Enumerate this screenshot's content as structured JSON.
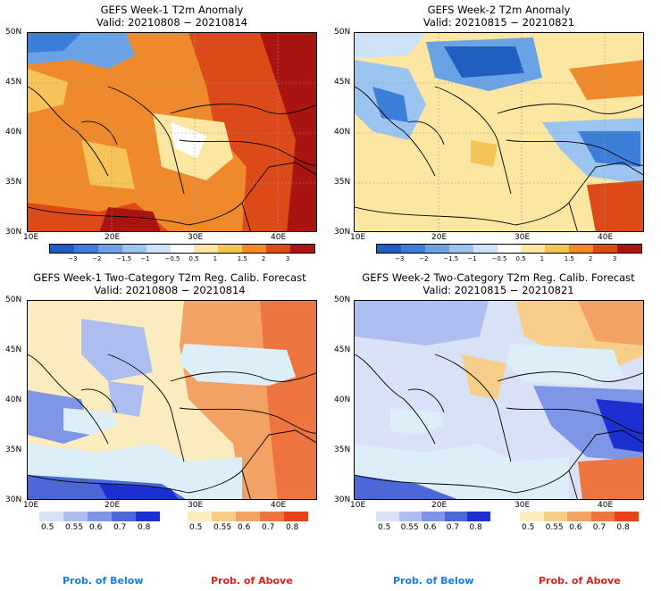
{
  "panels": [
    {
      "title": "GEFS Week-1 T2m Anomaly",
      "valid": "Valid: 20210808 − 20210814"
    },
    {
      "title": "GEFS Week-2 T2m Anomaly",
      "valid": "Valid: 20210815 − 20210821"
    },
    {
      "title": "GEFS Week-1 Two-Category T2m Reg. Calib. Forecast",
      "valid": "Valid: 20210808 − 20210814"
    },
    {
      "title": "GEFS Week-2 Two-Category T2m Reg. Calib. Forecast",
      "valid": "Valid: 20210815 − 20210821"
    }
  ],
  "lat_labels": [
    "50N",
    "45N",
    "40N",
    "35N",
    "30N"
  ],
  "lon_labels": [
    "10E",
    "20E",
    "30E",
    "40E"
  ],
  "anomaly_colorbar": {
    "ticks": [
      "−3",
      "−2",
      "−1.5",
      "−1",
      "−0.5",
      "0.5",
      "1",
      "1.5",
      "2",
      "3"
    ],
    "colors": [
      "#1f5fbf",
      "#3d7fd8",
      "#6aa2e6",
      "#9cc4f0",
      "#cfe3f8",
      "#ffffff",
      "#fbe6a2",
      "#f6c25a",
      "#ee8a2c",
      "#dc4a1a",
      "#a8140f"
    ]
  },
  "prob_colorbar": {
    "below_ticks": [
      "0.5",
      "0.55",
      "0.6",
      "0.7",
      "0.8"
    ],
    "above_ticks": [
      "0.5",
      "0.55",
      "0.6",
      "0.7",
      "0.8"
    ],
    "below_colors": [
      "#d9e1f7",
      "#aebdf0",
      "#7f96e6",
      "#4c68d8",
      "#1c2fd0"
    ],
    "above_colors": [
      "#fbecc0",
      "#f7cd8a",
      "#f3a266",
      "#ef7540",
      "#e8431a"
    ],
    "below_label": "Prob. of Below",
    "above_label": "Prob. of Above",
    "below_label_color": "#1b7be0",
    "above_label_color": "#e0201a"
  }
}
